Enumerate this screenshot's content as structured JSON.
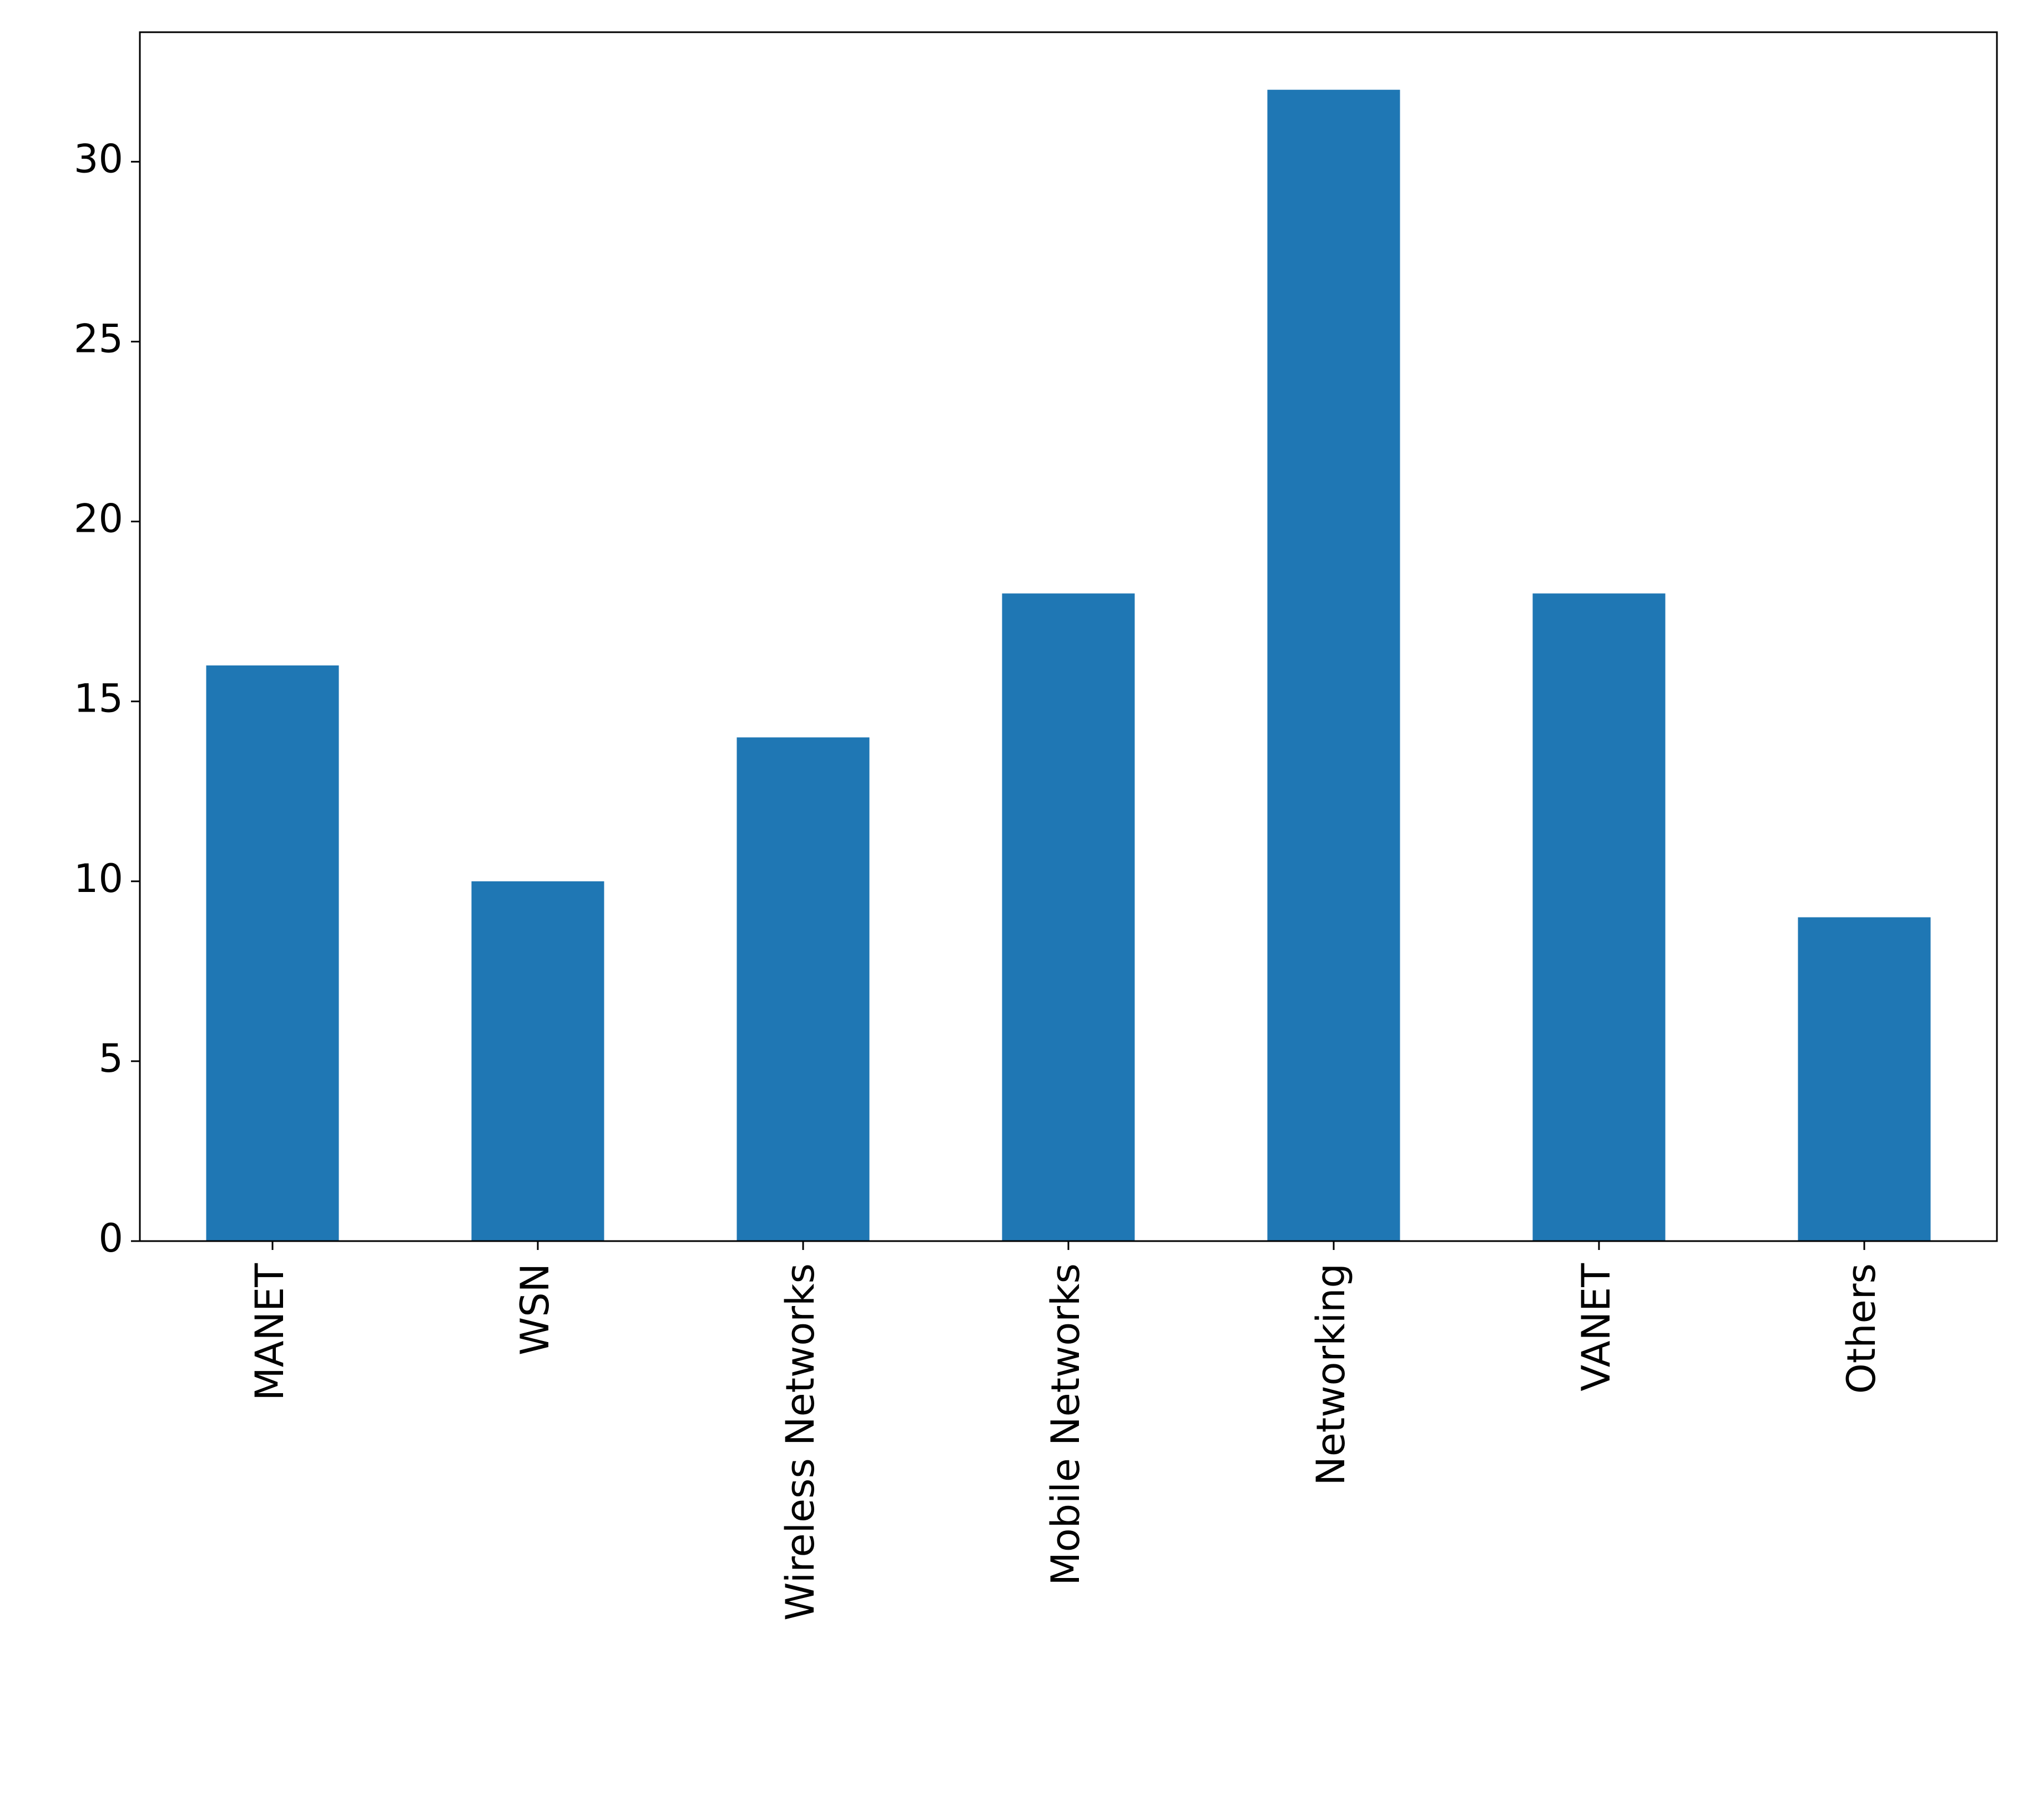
{
  "chart_data": {
    "type": "bar",
    "categories": [
      "MANET",
      "WSN",
      "Wireless Networks",
      "Mobile Networks",
      "Networking",
      "VANET",
      "Others"
    ],
    "values": [
      16,
      10,
      14,
      18,
      32,
      18,
      9
    ],
    "color": "#1f77b4",
    "ylim": [
      0,
      33.6
    ],
    "yticks": [
      0,
      5,
      10,
      15,
      20,
      25,
      30
    ],
    "grid": false
  }
}
